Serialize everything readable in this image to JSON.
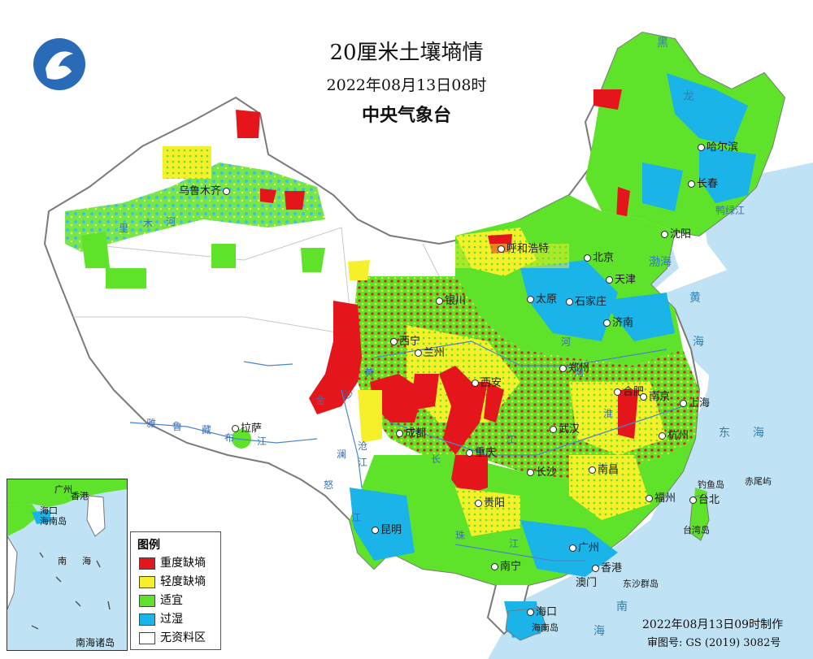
{
  "title": {
    "main": "20厘米土壤墒情",
    "datetime": "2022年08月13日08时",
    "issuer": "中央气象台"
  },
  "legend": {
    "title": "图例",
    "items": [
      {
        "label": "重度缺墒",
        "color": "#e4161c"
      },
      {
        "label": "轻度缺墒",
        "color": "#f5f02a"
      },
      {
        "label": "适宜",
        "color": "#5ee22a"
      },
      {
        "label": "过湿",
        "color": "#1ab4e8"
      },
      {
        "label": "无资料区",
        "color": "#ffffff"
      }
    ]
  },
  "cities": {
    "harbin": "哈尔滨",
    "changchun": "长春",
    "shenyang": "沈阳",
    "beijing": "北京",
    "tianjin": "天津",
    "shijiazhuang": "石家庄",
    "taiyuan": "太原",
    "jinan": "济南",
    "hohhot": "呼和浩特",
    "yinchuan": "银川",
    "xining": "西宁",
    "lanzhou": "兰州",
    "xian": "西安",
    "zhengzhou": "郑州",
    "hefei": "合肥",
    "nanjing": "南京",
    "shanghai": "上海",
    "hangzhou": "杭州",
    "wuhan": "武汉",
    "chengdu": "成都",
    "chongqing": "重庆",
    "changsha": "长沙",
    "nanchang": "南昌",
    "fuzhou": "福州",
    "taipei": "台北",
    "guiyang": "贵阳",
    "kunming": "昆明",
    "nanning": "南宁",
    "guangzhou": "广州",
    "hongkong": "香港",
    "macau": "澳门",
    "haikou": "海口",
    "lhasa": "拉萨",
    "urumqi": "乌鲁木齐"
  },
  "seas": {
    "bohai": "渤海",
    "yellow_1": "黄",
    "yellow_2": "海",
    "east_1": "东",
    "east_2": "海",
    "south_1": "南",
    "south_2": "海",
    "heilong": "黑",
    "long": "龙"
  },
  "islands": {
    "diaoyu": "钓鱼岛",
    "chiwei": "赤尾屿",
    "dongsha": "东沙群岛",
    "taiwan": "台湾岛",
    "hainan": "海南岛"
  },
  "rivers": {
    "yarlung_1": "雅",
    "yarlung_2": "鲁",
    "yarlung_3": "藏",
    "yarlung_4": "布",
    "yarlung_5": "江",
    "jinsha_1": "金",
    "jinsha_2": "沙",
    "jinsha_3": "江",
    "tarim_1": "里",
    "tarim_2": "木",
    "tarim_3": "河",
    "yellow_river_1": "黄",
    "yellow_river_2": "河",
    "yangtze_1": "长",
    "yangtze_2": "江",
    "pearl_1": "珠",
    "pearl_2": "江",
    "lancang_1": "澜",
    "lancang_2": "沧",
    "lancang_3": "江",
    "nu": "怒",
    "huai": "淮",
    "huai2": "河",
    "yalu": "鸭绿江"
  },
  "inset": {
    "title": "南海诸岛",
    "labels": {
      "guangzhou": "广州",
      "hongkong": "香港",
      "haikou": "海口",
      "hainan": "海南岛",
      "nan": "南",
      "hai": "海"
    }
  },
  "footer": {
    "made": "2022年08月13日09时制作",
    "review": "审图号: GS (2019) 3082号"
  }
}
